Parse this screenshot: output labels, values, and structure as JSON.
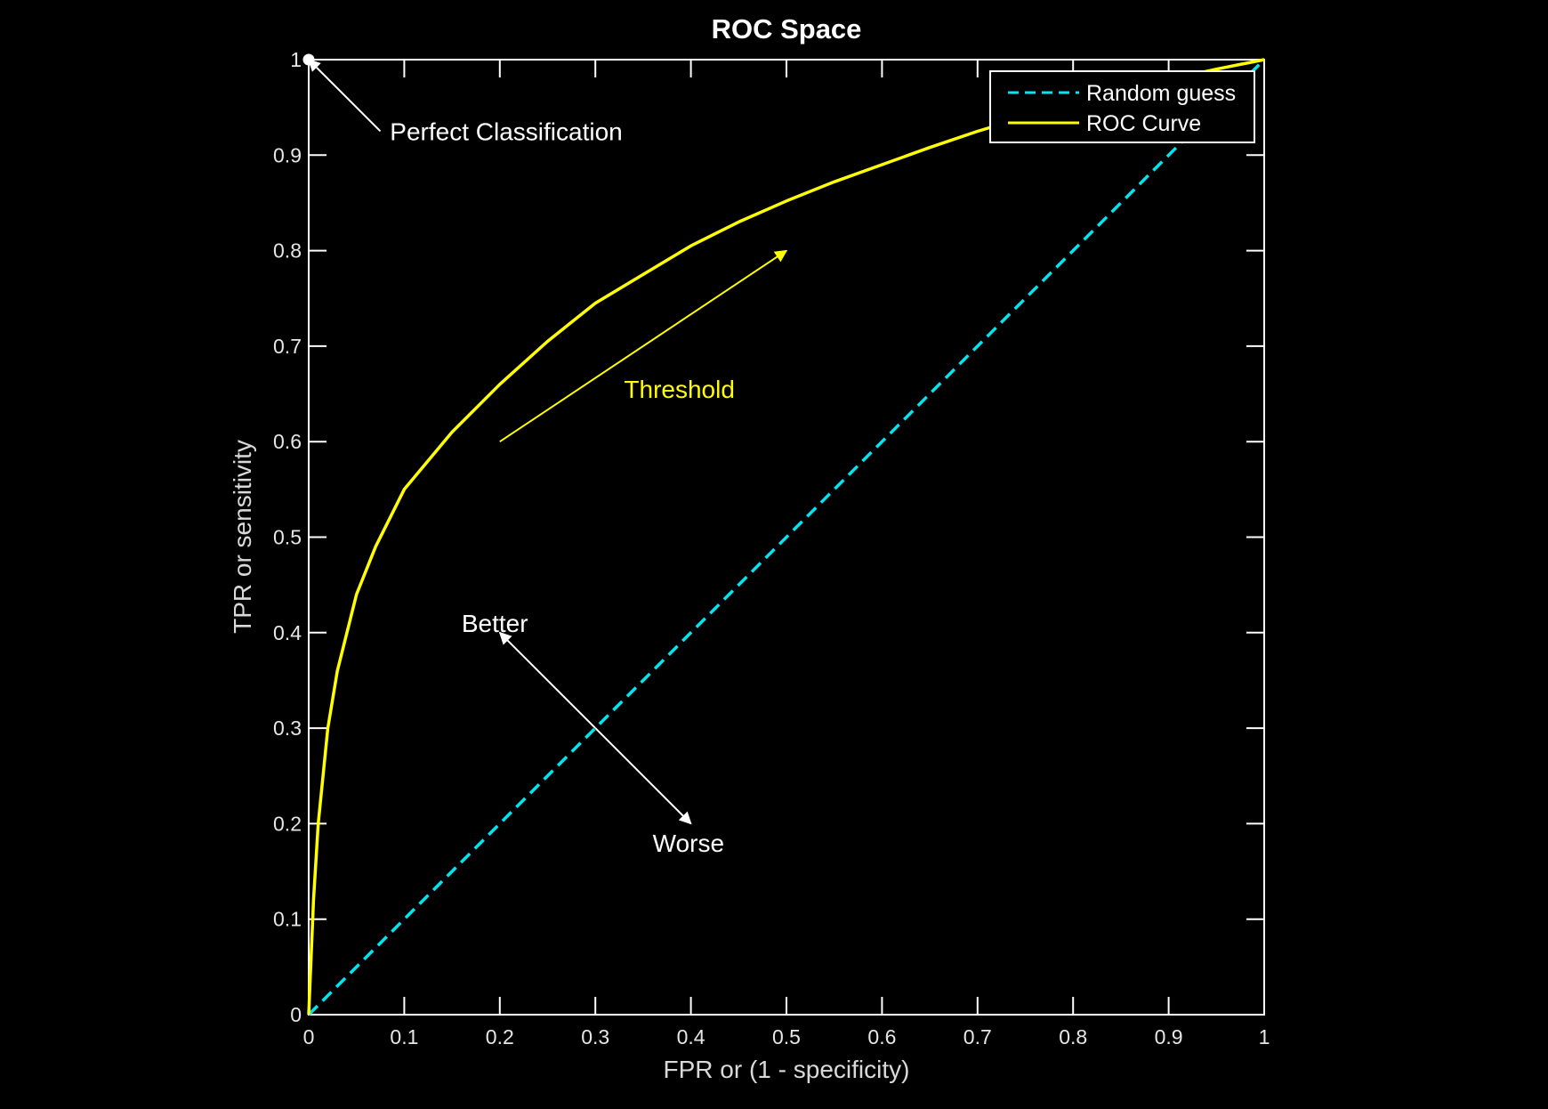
{
  "chart_data": {
    "type": "line",
    "title": "ROC Space",
    "xlabel": "FPR or (1 - specificity)",
    "ylabel": "TPR or sensitivity",
    "xlim": [
      0,
      1
    ],
    "ylim": [
      0,
      1
    ],
    "grid": false,
    "legend_position": "top-right",
    "x_ticks": [
      "0",
      "0.1",
      "0.2",
      "0.3",
      "0.4",
      "0.5",
      "0.6",
      "0.7",
      "0.8",
      "0.9",
      "1"
    ],
    "y_ticks": [
      "0",
      "0.1",
      "0.2",
      "0.3",
      "0.4",
      "0.5",
      "0.6",
      "0.7",
      "0.8",
      "0.9",
      "1"
    ],
    "colors": {
      "background": "#000000",
      "axes": "#ffffff",
      "roc": "#ffff00",
      "random": "#00e5ee"
    },
    "series": [
      {
        "name": "Random guess",
        "style": "dashed",
        "color": "#00e5ee",
        "x": [
          0,
          1
        ],
        "y": [
          0,
          1
        ]
      },
      {
        "name": "ROC Curve",
        "style": "solid",
        "color": "#ffff00",
        "x": [
          0,
          0.005,
          0.01,
          0.02,
          0.03,
          0.05,
          0.07,
          0.1,
          0.15,
          0.2,
          0.25,
          0.3,
          0.35,
          0.4,
          0.45,
          0.5,
          0.55,
          0.6,
          0.65,
          0.7,
          0.75,
          0.8,
          0.85,
          0.9,
          0.95,
          1.0
        ],
        "y": [
          0,
          0.12,
          0.2,
          0.3,
          0.36,
          0.44,
          0.49,
          0.55,
          0.61,
          0.66,
          0.705,
          0.745,
          0.775,
          0.805,
          0.83,
          0.852,
          0.872,
          0.89,
          0.908,
          0.925,
          0.94,
          0.954,
          0.967,
          0.979,
          0.99,
          1.0
        ]
      }
    ],
    "annotations": [
      {
        "text": "Perfect Classification",
        "x": 0.085,
        "y": 0.925,
        "arrow": {
          "from": [
            0.075,
            0.925
          ],
          "to": [
            0.0,
            1.0
          ]
        },
        "marker": {
          "x": 0,
          "y": 1
        }
      },
      {
        "text": "Threshold",
        "x": 0.33,
        "y": 0.655,
        "color": "#ffff00",
        "arrow": {
          "from": [
            0.2,
            0.6
          ],
          "to": [
            0.5,
            0.8
          ]
        }
      },
      {
        "text": "Better",
        "x": 0.16,
        "y": 0.41,
        "arrow": {
          "from": [
            0.3,
            0.3
          ],
          "to": [
            0.2,
            0.4
          ]
        }
      },
      {
        "text": "Worse",
        "x": 0.36,
        "y": 0.18,
        "arrow": {
          "from": [
            0.3,
            0.3
          ],
          "to": [
            0.4,
            0.2
          ]
        }
      }
    ]
  }
}
